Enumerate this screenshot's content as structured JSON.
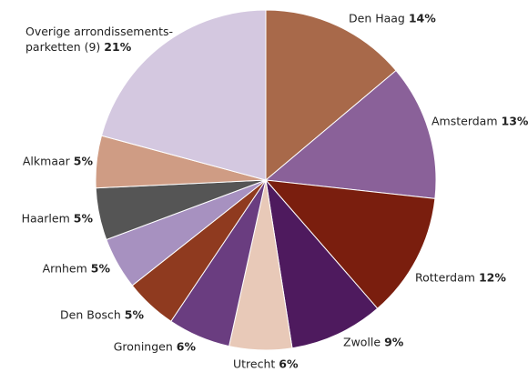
{
  "chart_data": {
    "type": "pie",
    "categories": [
      "Den Haag",
      "Amsterdam",
      "Rotterdam",
      "Zwolle",
      "Utrecht",
      "Groningen",
      "Den Bosch",
      "Arnhem",
      "Haarlem",
      "Alkmaar",
      "Overige arrondissements-parketten (9)"
    ],
    "values": [
      14,
      13,
      12,
      9,
      6,
      6,
      5,
      5,
      5,
      5,
      21
    ],
    "value_labels": [
      "14%",
      "13%",
      "12%",
      "9%",
      "6%",
      "6%",
      "5%",
      "5%",
      "5%",
      "5%",
      "21%"
    ],
    "colors": [
      "#a8694a",
      "#8a6199",
      "#7a1e0e",
      "#4e1a5e",
      "#e8c9b8",
      "#6a3d80",
      "#8f3a1f",
      "#a791c0",
      "#555555",
      "#cf9c84",
      "#d4c8e0"
    ]
  }
}
